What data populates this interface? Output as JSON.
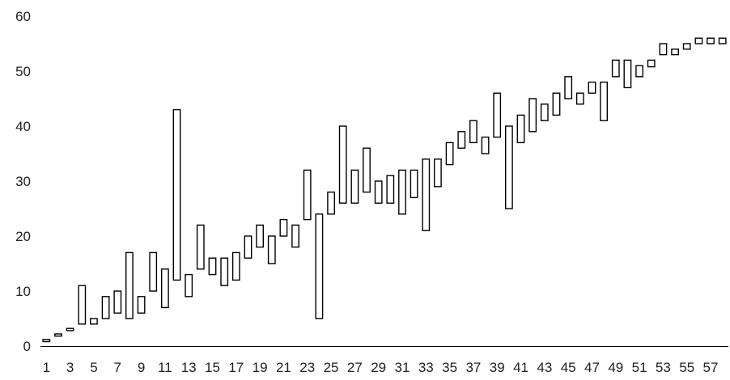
{
  "chart_data": {
    "type": "floating-bar",
    "title": "",
    "xlabel": "",
    "ylabel": "",
    "ylim": [
      0,
      60
    ],
    "yticks": [
      0,
      10,
      20,
      30,
      40,
      50,
      60
    ],
    "xtick_labels": [
      "1",
      "3",
      "5",
      "7",
      "9",
      "11",
      "13",
      "15",
      "17",
      "19",
      "21",
      "23",
      "25",
      "27",
      "29",
      "31",
      "33",
      "35",
      "37",
      "39",
      "41",
      "43",
      "45",
      "47",
      "49",
      "51",
      "53",
      "55",
      "57"
    ],
    "grid": false,
    "legend": "none",
    "categories": [
      1,
      2,
      3,
      4,
      5,
      6,
      7,
      8,
      9,
      10,
      11,
      12,
      13,
      14,
      15,
      16,
      17,
      18,
      19,
      20,
      21,
      22,
      23,
      24,
      25,
      26,
      27,
      28,
      29,
      30,
      31,
      32,
      33,
      34,
      35,
      36,
      37,
      38,
      39,
      40,
      41,
      42,
      43,
      44,
      45,
      46,
      47,
      48,
      49,
      50,
      51,
      52,
      53,
      54,
      55,
      56,
      57,
      58
    ],
    "series": [
      {
        "values": [
          [
            0.8,
            1.2
          ],
          [
            1.8,
            2.2
          ],
          [
            2.8,
            3.2
          ],
          [
            4,
            11
          ],
          [
            4,
            5
          ],
          [
            5,
            9
          ],
          [
            6,
            10
          ],
          [
            5,
            17
          ],
          [
            6,
            9
          ],
          [
            10,
            17
          ],
          [
            7,
            14
          ],
          [
            12,
            43
          ],
          [
            9,
            13
          ],
          [
            14,
            22
          ],
          [
            13,
            16
          ],
          [
            11,
            16
          ],
          [
            12,
            17
          ],
          [
            16,
            20
          ],
          [
            18,
            22
          ],
          [
            15,
            20
          ],
          [
            20,
            23
          ],
          [
            18,
            22
          ],
          [
            23,
            32
          ],
          [
            5,
            24
          ],
          [
            24,
            28
          ],
          [
            26,
            40
          ],
          [
            26,
            32
          ],
          [
            28,
            36
          ],
          [
            26,
            30
          ],
          [
            26,
            31
          ],
          [
            24,
            32
          ],
          [
            27,
            32
          ],
          [
            21,
            34
          ],
          [
            29,
            34
          ],
          [
            33,
            37
          ],
          [
            36,
            39
          ],
          [
            37,
            41
          ],
          [
            35,
            38
          ],
          [
            38,
            46
          ],
          [
            25,
            40
          ],
          [
            37,
            42
          ],
          [
            39,
            45
          ],
          [
            41,
            44
          ],
          [
            42,
            46
          ],
          [
            45,
            49
          ],
          [
            44,
            46
          ],
          [
            46,
            48
          ],
          [
            41,
            48
          ],
          [
            49,
            52
          ],
          [
            47,
            52
          ],
          [
            49,
            51
          ],
          [
            50.8,
            52
          ],
          [
            53,
            55
          ],
          [
            53,
            54
          ],
          [
            54,
            55
          ],
          [
            55,
            56
          ],
          [
            55,
            56
          ],
          [
            55,
            56
          ]
        ]
      }
    ],
    "colors": {
      "bar_fill": "#ffffff",
      "bar_stroke": "#000000",
      "axis": "#000000",
      "text": "#222222"
    }
  }
}
